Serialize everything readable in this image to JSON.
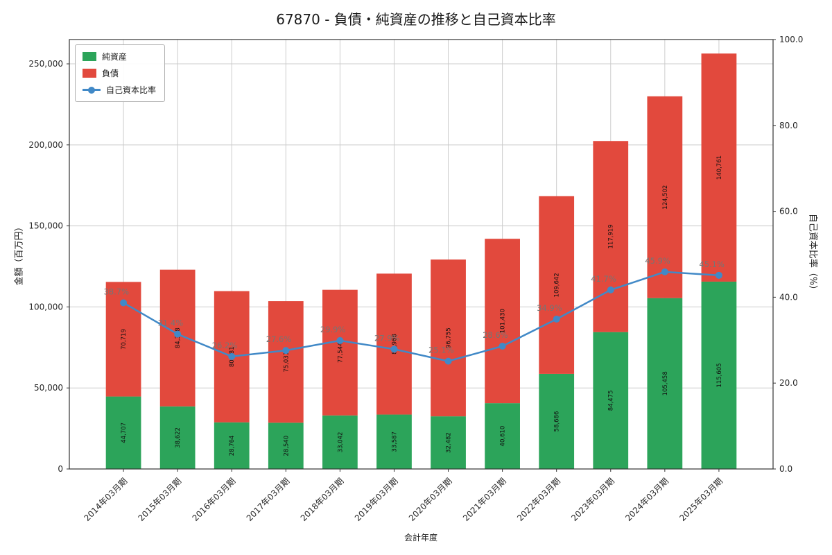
{
  "chart_data": {
    "type": "bar",
    "subtype": "stacked-bars-with-line",
    "title": "67870 - 負債・純資産の推移と自己資本比率",
    "xlabel": "会計年度",
    "ylabel_left": "金額（百万円）",
    "ylabel_right": "自己資本比率（%）",
    "categories": [
      "2014年03月期",
      "2015年03月期",
      "2016年03月期",
      "2017年03月期",
      "2018年03月期",
      "2019年03月期",
      "2020年03月期",
      "2021年03月期",
      "2022年03月期",
      "2023年03月期",
      "2024年03月期",
      "2025年03月期"
    ],
    "series": [
      {
        "name": "純資産",
        "type": "bar",
        "color": "#2ca45a",
        "values": [
          44707,
          38622,
          28764,
          28540,
          33042,
          33587,
          32482,
          40610,
          58686,
          84475,
          105458,
          115605
        ],
        "labels": [
          "44,707",
          "38,622",
          "28,764",
          "28,540",
          "33,042",
          "33,587",
          "32,482",
          "40,610",
          "58,686",
          "84,475",
          "105,458",
          "115,605"
        ]
      },
      {
        "name": "負債",
        "type": "bar",
        "color": "#e2493d",
        "values": [
          70719,
          84378,
          80981,
          75031,
          77544,
          86968,
          96755,
          101430,
          109642,
          117919,
          124502,
          140761
        ],
        "labels": [
          "70,719",
          "84,378",
          "80,981",
          "75,031",
          "77,544",
          "86,968",
          "96,755",
          "101,430",
          "109,642",
          "117,919",
          "124,502",
          "140,761"
        ]
      },
      {
        "name": "自己資本比率",
        "type": "line",
        "color": "#4189c7",
        "values": [
          38.7,
          31.4,
          26.2,
          27.6,
          29.9,
          27.9,
          25.1,
          28.6,
          34.9,
          41.7,
          45.9,
          45.1
        ],
        "labels": [
          "38.7%",
          "31.4%",
          "26.2%",
          "27.6%",
          "29.9%",
          "27.9%",
          "25.1%",
          "28.6%",
          "34.9%",
          "41.7%",
          "45.9%",
          "45.1%"
        ]
      }
    ],
    "left_axis": {
      "min": 0,
      "max": 265000,
      "ticks": [
        0,
        50000,
        100000,
        150000,
        200000,
        250000
      ],
      "tick_labels": [
        "0",
        "50,000",
        "100,000",
        "150,000",
        "200,000",
        "250,000"
      ]
    },
    "right_axis": {
      "min": 0,
      "max": 100,
      "ticks": [
        0,
        20,
        40,
        60,
        80,
        100
      ],
      "tick_labels": [
        "0.0",
        "20.0",
        "40.0",
        "60.0",
        "80.0",
        "100.0"
      ]
    },
    "grid": true,
    "legend_position": "top-left",
    "x_tick_rotation": 45
  }
}
